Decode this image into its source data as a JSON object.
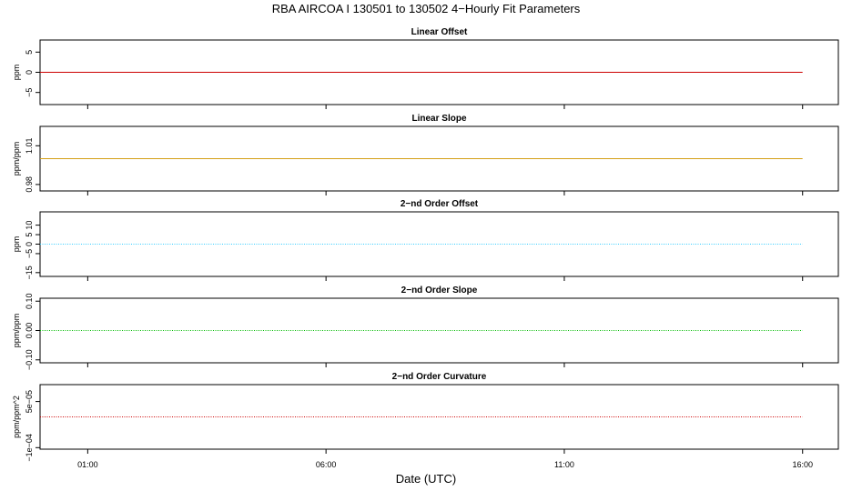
{
  "figure": {
    "title": "RBA   AIRCOA I   130501 to 130502   4−Hourly Fit Parameters",
    "xlabel": "Date (UTC)",
    "x_ticks": [
      "01:00",
      "06:00",
      "11:00",
      "16:00"
    ]
  },
  "chart_data": [
    {
      "type": "line",
      "title": "Linear Offset",
      "ylabel": "ppm",
      "xlim": [
        "00:00",
        "16:45"
      ],
      "ylim": [
        -8,
        8
      ],
      "y_ticks": [
        "−5",
        "0",
        "5"
      ],
      "y_tick_values": [
        -5,
        0,
        5
      ],
      "line_style": "solid",
      "color": "#cc0000",
      "series": [
        {
          "x": [
            "00:00",
            "16:00"
          ],
          "values": [
            0,
            0
          ]
        }
      ]
    },
    {
      "type": "line",
      "title": "Linear Slope",
      "ylabel": "ppm/ppm",
      "xlim": [
        "00:00",
        "16:45"
      ],
      "ylim": [
        0.975,
        1.025
      ],
      "y_ticks": [
        "0.98",
        "1.01"
      ],
      "y_tick_values": [
        0.98,
        1.01
      ],
      "line_style": "solid",
      "color": "#d4a017",
      "series": [
        {
          "x": [
            "00:00",
            "16:00"
          ],
          "values": [
            1.0,
            1.0
          ]
        }
      ]
    },
    {
      "type": "line",
      "title": "2−nd Order Offset",
      "ylabel": "ppm",
      "xlim": [
        "00:00",
        "16:45"
      ],
      "ylim": [
        -17,
        17
      ],
      "y_ticks": [
        "−15",
        "−5",
        "0",
        "5",
        "10"
      ],
      "y_tick_values": [
        -15,
        -5,
        0,
        5,
        10
      ],
      "line_style": "dotted",
      "color": "#33ccff",
      "series": [
        {
          "x": [
            "00:00",
            "16:00"
          ],
          "values": [
            0,
            0
          ]
        }
      ]
    },
    {
      "type": "line",
      "title": "2−nd Order Slope",
      "ylabel": "ppm/ppm",
      "xlim": [
        "00:00",
        "16:45"
      ],
      "ylim": [
        -0.11,
        0.11
      ],
      "y_ticks": [
        "−0.10",
        "0.00",
        "0.10"
      ],
      "y_tick_values": [
        -0.1,
        0.0,
        0.1
      ],
      "line_style": "dotted",
      "color": "#00bb00",
      "series": [
        {
          "x": [
            "00:00",
            "16:00"
          ],
          "values": [
            0,
            0
          ]
        }
      ]
    },
    {
      "type": "line",
      "title": "2−nd Order Curvature",
      "ylabel": "ppm/ppm^2",
      "xlim": [
        "00:00",
        "16:45"
      ],
      "ylim": [
        -0.000105,
        0.000105
      ],
      "y_ticks": [
        "−1e−04",
        "5e−05"
      ],
      "y_tick_values": [
        -0.0001,
        5e-05
      ],
      "line_style": "dotted",
      "color": "#cc0000",
      "series": [
        {
          "x": [
            "00:00",
            "16:00"
          ],
          "values": [
            0,
            0
          ]
        }
      ]
    }
  ]
}
